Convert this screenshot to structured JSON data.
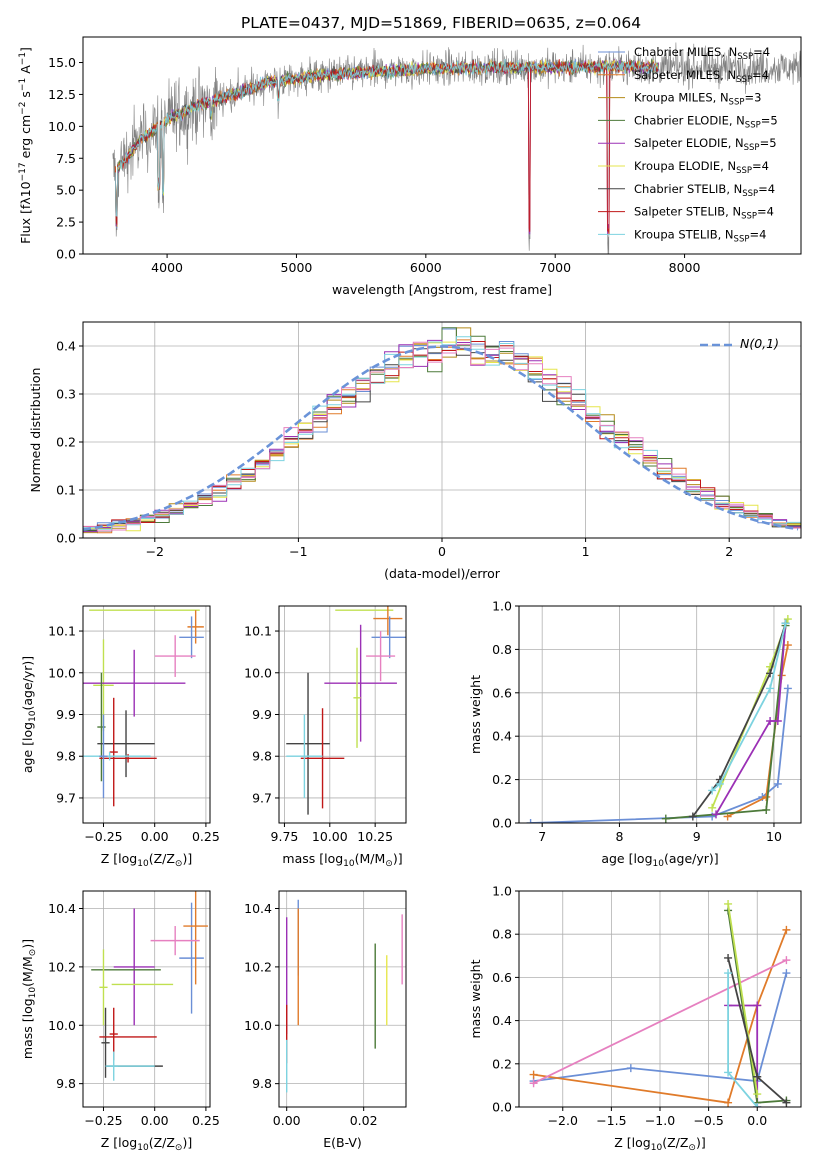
{
  "figure_title": "PLATE=0437, MJD=51869, FIBERID=0635, z=0.064",
  "colors": {
    "chabrier_miles": "#6b8fd6",
    "salpeter_miles": "#e07b2a",
    "kroupa_miles": "#b58b1a",
    "chabrier_elodie": "#4d7a3a",
    "salpeter_elodie": "#9b30b5",
    "kroupa_elodie": "#e6e64d",
    "chabrier_stelib": "#444444",
    "salpeter_stelib": "#c01818",
    "kroupa_stelib": "#7dd3e0",
    "data": "#808080",
    "normal": "#6a93d8",
    "pink": "#e680c0",
    "lime": "#c0e050"
  },
  "chart_data": [
    {
      "id": "spectrum",
      "type": "line",
      "title": "PLATE=0437, MJD=51869, FIBERID=0635, z=0.064",
      "xlabel": "wavelength [Angstrom, rest frame]",
      "ylabel_parts": [
        "Flux [f",
        "λ",
        "10",
        "−17",
        " erg cm",
        "−2",
        " s",
        "−1",
        " A",
        "−1",
        "]"
      ],
      "xlim": [
        3350,
        8900
      ],
      "ylim": [
        0,
        17
      ],
      "xticks": [
        "4000",
        "5000",
        "6000",
        "7000",
        "8000"
      ],
      "yticks": [
        "0.0",
        "2.5",
        "5.0",
        "7.5",
        "10.0",
        "12.5",
        "15.0"
      ],
      "legend_position": "right",
      "legend": [
        {
          "name": "Chabrier MILES, N",
          "sub": "SSP",
          "tail": "=4",
          "color": "#6b8fd6"
        },
        {
          "name": "Salpeter MILES, N",
          "sub": "SSP",
          "tail": "=4",
          "color": "#e07b2a"
        },
        {
          "name": "Kroupa MILES, N",
          "sub": "SSP",
          "tail": "=3",
          "color": "#b58b1a"
        },
        {
          "name": "Chabrier ELODIE, N",
          "sub": "SSP",
          "tail": "=5",
          "color": "#4d7a3a"
        },
        {
          "name": "Salpeter ELODIE, N",
          "sub": "SSP",
          "tail": "=5",
          "color": "#9b30b5"
        },
        {
          "name": "Kroupa ELODIE, N",
          "sub": "SSP",
          "tail": "=4",
          "color": "#e6e64d"
        },
        {
          "name": "Chabrier STELIB, N",
          "sub": "SSP",
          "tail": "=4",
          "color": "#444444"
        },
        {
          "name": "Salpeter STELIB, N",
          "sub": "SSP",
          "tail": "=4",
          "color": "#c01818"
        },
        {
          "name": "Kroupa STELIB, N",
          "sub": "SSP",
          "tail": "=4",
          "color": "#7dd3e0"
        }
      ],
      "continuum_anchor_points": [
        [
          3600,
          6.5
        ],
        [
          3800,
          9.0
        ],
        [
          4000,
          10.5
        ],
        [
          4200,
          11.5
        ],
        [
          4500,
          12.5
        ],
        [
          4800,
          13.5
        ],
        [
          5200,
          14.0
        ],
        [
          5600,
          14.3
        ],
        [
          6000,
          14.5
        ],
        [
          6500,
          14.6
        ],
        [
          7000,
          14.6
        ],
        [
          7500,
          14.7
        ],
        [
          7800,
          14.6
        ]
      ],
      "dips": [
        [
          3610,
          0.5
        ],
        [
          3935,
          3.5
        ],
        [
          3968,
          3.0
        ],
        [
          4340,
          9.0
        ],
        [
          4861,
          10.5
        ],
        [
          5890,
          12.5
        ],
        [
          6563,
          13.0
        ],
        [
          6800,
          0.0
        ],
        [
          7410,
          0.0
        ]
      ]
    },
    {
      "id": "residuals",
      "type": "line",
      "xlabel": "(data-model)/error",
      "ylabel": "Normed distribution",
      "xlim": [
        -2.5,
        2.5
      ],
      "ylim": [
        0,
        0.45
      ],
      "xticks": [
        "−2",
        "−1",
        "0",
        "1",
        "2"
      ],
      "yticks": [
        "0.0",
        "0.1",
        "0.2",
        "0.3",
        "0.4"
      ],
      "grid": true,
      "legend_position": "top-right",
      "legend": [
        {
          "name": "N(0,1)",
          "color": "#6a93d8"
        }
      ],
      "bin_width": 0.1,
      "distribution": "standard normal, peak 0.40 at x = 0, histograms of all 9 fits slightly shifted to positive x"
    },
    {
      "id": "age_vs_Z",
      "type": "scatter",
      "xlabel_parts": [
        "Z [log",
        "10",
        "(Z/Z",
        "⊙",
        ")]"
      ],
      "ylabel_parts": [
        "age  [log",
        "10",
        "(age/yr)]"
      ],
      "xlim": [
        -0.35,
        0.27
      ],
      "ylim": [
        9.64,
        10.16
      ],
      "xticks": [
        "−0.25",
        "0.00",
        "0.25"
      ],
      "yticks": [
        "9.7",
        "9.8",
        "9.9",
        "10.0",
        "10.1"
      ],
      "grid": true,
      "points": [
        {
          "x": -0.05,
          "y": 10.15,
          "xerr": 0.27,
          "yerr": 0.0,
          "color": "#c0e050"
        },
        {
          "x": 0.2,
          "y": 10.11,
          "xerr": 0.04,
          "yerr": 0.04,
          "color": "#e07b2a"
        },
        {
          "x": 0.18,
          "y": 10.085,
          "xerr": 0.06,
          "yerr": 0.05,
          "color": "#6b8fd6"
        },
        {
          "x": 0.1,
          "y": 10.04,
          "xerr": 0.1,
          "yerr": 0.05,
          "color": "#e680c0"
        },
        {
          "x": -0.25,
          "y": 9.97,
          "xerr": 0.05,
          "yerr": 0.11,
          "color": "#c0e050"
        },
        {
          "x": -0.1,
          "y": 9.975,
          "xerr": 0.25,
          "yerr": 0.08,
          "color": "#9b30b5"
        },
        {
          "x": -0.26,
          "y": 9.87,
          "xerr": 0.02,
          "yerr": 0.13,
          "color": "#4d7a3a"
        },
        {
          "x": -0.14,
          "y": 9.83,
          "xerr": 0.14,
          "yerr": 0.08,
          "color": "#444444"
        },
        {
          "x": -0.2,
          "y": 9.81,
          "xerr": 0.02,
          "yerr": 0.13,
          "color": "#c01818"
        },
        {
          "x": -0.13,
          "y": 9.795,
          "xerr": 0.14,
          "yerr": 0.01,
          "color": "#c01818"
        },
        {
          "x": -0.22,
          "y": 9.8,
          "xerr": 0.2,
          "yerr": 0.01,
          "color": "#7dd3e0"
        },
        {
          "x": -0.25,
          "y": 9.8,
          "xerr": 0.02,
          "yerr": 0.1,
          "color": "#6b8fd6"
        }
      ]
    },
    {
      "id": "age_vs_mass",
      "type": "scatter",
      "xlabel_parts": [
        "mass [log",
        "10",
        "(M/M",
        "⊙",
        ")]"
      ],
      "xlim": [
        9.72,
        10.42
      ],
      "ylim": [
        9.64,
        10.16
      ],
      "xticks": [
        "9.75",
        "10.00",
        "10.25"
      ],
      "yticks": [
        "9.7",
        "9.8",
        "9.9",
        "10.0",
        "10.1"
      ],
      "grid": true,
      "points": [
        {
          "x": 10.19,
          "y": 10.15,
          "xerr": 0.16,
          "yerr": 0.0,
          "color": "#c0e050"
        },
        {
          "x": 10.32,
          "y": 10.13,
          "xerr": 0.08,
          "yerr": 0.04,
          "color": "#e07b2a"
        },
        {
          "x": 10.33,
          "y": 10.085,
          "xerr": 0.1,
          "yerr": 0.05,
          "color": "#6b8fd6"
        },
        {
          "x": 10.28,
          "y": 10.04,
          "xerr": 0.08,
          "yerr": 0.06,
          "color": "#e680c0"
        },
        {
          "x": 10.17,
          "y": 9.975,
          "xerr": 0.2,
          "yerr": 0.14,
          "color": "#9b30b5"
        },
        {
          "x": 10.15,
          "y": 9.94,
          "xerr": 0.02,
          "yerr": 0.12,
          "color": "#c0e050"
        },
        {
          "x": 9.88,
          "y": 9.83,
          "xerr": 0.12,
          "yerr": 0.17,
          "color": "#444444"
        },
        {
          "x": 9.96,
          "y": 9.795,
          "xerr": 0.12,
          "yerr": 0.12,
          "color": "#c01818"
        },
        {
          "x": 9.86,
          "y": 9.8,
          "xerr": 0.1,
          "yerr": 0.1,
          "color": "#7dd3e0"
        }
      ]
    },
    {
      "id": "mass_weight_vs_age",
      "type": "line",
      "xlabel_parts": [
        "age  [log",
        "10",
        "(age/yr)]"
      ],
      "ylabel": "mass weight",
      "xlim": [
        6.7,
        10.35
      ],
      "ylim": [
        0,
        1.0
      ],
      "xticks": [
        "7",
        "8",
        "9",
        "10"
      ],
      "yticks": [
        "0.0",
        "0.2",
        "0.4",
        "0.6",
        "0.8",
        "1.0"
      ],
      "grid": true,
      "series": [
        {
          "color": "#6b8fd6",
          "points": [
            [
              6.85,
              0.0
            ],
            [
              9.2,
              0.03
            ],
            [
              9.85,
              0.12
            ],
            [
              10.05,
              0.18
            ],
            [
              10.18,
              0.62
            ]
          ]
        },
        {
          "color": "#e07b2a",
          "points": [
            [
              9.4,
              0.03
            ],
            [
              9.9,
              0.12
            ],
            [
              10.1,
              0.68
            ],
            [
              10.18,
              0.82
            ]
          ]
        },
        {
          "color": "#4d7a3a",
          "points": [
            [
              8.6,
              0.02
            ],
            [
              9.9,
              0.06
            ],
            [
              10.15,
              0.91
            ]
          ]
        },
        {
          "color": "#9b30b5",
          "points": [
            [
              9.25,
              0.04
            ],
            [
              9.95,
              0.47
            ],
            [
              10.05,
              0.47
            ],
            [
              10.15,
              0.92
            ]
          ]
        },
        {
          "color": "#c0e050",
          "points": [
            [
              9.2,
              0.07
            ],
            [
              9.95,
              0.72
            ],
            [
              10.18,
              0.94
            ]
          ]
        },
        {
          "color": "#444444",
          "points": [
            [
              8.95,
              0.03
            ],
            [
              9.3,
              0.2
            ],
            [
              9.95,
              0.69
            ],
            [
              10.15,
              0.92
            ]
          ]
        },
        {
          "color": "#7dd3e0",
          "points": [
            [
              9.2,
              0.15
            ],
            [
              9.3,
              0.18
            ],
            [
              9.95,
              0.62
            ],
            [
              10.15,
              0.92
            ]
          ]
        }
      ]
    },
    {
      "id": "mass_vs_Z",
      "type": "scatter",
      "xlabel_parts": [
        "Z [log",
        "10",
        "(Z/Z",
        "⊙",
        ")]"
      ],
      "ylabel_parts": [
        "mass [log",
        "10",
        "(M/M",
        "⊙",
        ")]"
      ],
      "xlim": [
        -0.35,
        0.27
      ],
      "ylim": [
        9.72,
        10.46
      ],
      "xticks": [
        "−0.25",
        "0.00",
        "0.25"
      ],
      "yticks": [
        "9.8",
        "10.0",
        "10.2",
        "10.4"
      ],
      "grid": true,
      "points": [
        {
          "x": 0.18,
          "y": 10.23,
          "xerr": 0.06,
          "yerr": 0.19,
          "color": "#6b8fd6"
        },
        {
          "x": 0.2,
          "y": 10.34,
          "xerr": 0.06,
          "yerr": 0.2,
          "color": "#e07b2a"
        },
        {
          "x": 0.1,
          "y": 10.29,
          "xerr": 0.12,
          "yerr": 0.05,
          "color": "#e680c0"
        },
        {
          "x": -0.1,
          "y": 10.2,
          "xerr": 0.1,
          "yerr": 0.2,
          "color": "#9b30b5"
        },
        {
          "x": -0.06,
          "y": 10.14,
          "xerr": 0.15,
          "yerr": 0.0,
          "color": "#c0e050"
        },
        {
          "x": -0.14,
          "y": 10.19,
          "xerr": 0.17,
          "yerr": 0.0,
          "color": "#4d7a3a"
        },
        {
          "x": -0.25,
          "y": 10.13,
          "xerr": 0.02,
          "yerr": 0.13,
          "color": "#c0e050"
        },
        {
          "x": -0.24,
          "y": 9.94,
          "xerr": 0.02,
          "yerr": 0.12,
          "color": "#444444"
        },
        {
          "x": -0.2,
          "y": 9.97,
          "xerr": 0.02,
          "yerr": 0.09,
          "color": "#c01818"
        },
        {
          "x": -0.13,
          "y": 9.96,
          "xerr": 0.14,
          "yerr": 0.0,
          "color": "#c01818"
        },
        {
          "x": -0.1,
          "y": 9.86,
          "xerr": 0.14,
          "yerr": 0.0,
          "color": "#444444"
        },
        {
          "x": -0.2,
          "y": 9.86,
          "xerr": 0.02,
          "yerr": 0.05,
          "color": "#7dd3e0"
        },
        {
          "x": -0.12,
          "y": 9.86,
          "xerr": 0.12,
          "yerr": 0.0,
          "color": "#7dd3e0"
        }
      ]
    },
    {
      "id": "mass_vs_ebv",
      "type": "scatter",
      "xlabel": "E(B-V)",
      "xlim": [
        -0.002,
        0.031
      ],
      "ylim": [
        9.72,
        10.46
      ],
      "xticks": [
        "0.00",
        "0.02"
      ],
      "yticks": [
        "9.8",
        "10.0",
        "10.2",
        "10.4"
      ],
      "grid": true,
      "points": [
        {
          "x": 0.0,
          "y": 10.17,
          "xerr": 0.0,
          "yerr": 0.2,
          "color": "#9b30b5"
        },
        {
          "x": 0.0,
          "y": 9.97,
          "xerr": 0.0,
          "yerr": 0.1,
          "color": "#c01818"
        },
        {
          "x": 0.0,
          "y": 9.86,
          "xerr": 0.0,
          "yerr": 0.09,
          "color": "#7dd3e0"
        },
        {
          "x": 0.003,
          "y": 10.3,
          "xerr": 0.0,
          "yerr": 0.13,
          "color": "#6b8fd6"
        },
        {
          "x": 0.003,
          "y": 10.2,
          "xerr": 0.0,
          "yerr": 0.2,
          "color": "#e07b2a"
        },
        {
          "x": 0.023,
          "y": 10.1,
          "xerr": 0.0,
          "yerr": 0.18,
          "color": "#4d7a3a"
        },
        {
          "x": 0.026,
          "y": 10.12,
          "xerr": 0.0,
          "yerr": 0.12,
          "color": "#e6e64d"
        },
        {
          "x": 0.03,
          "y": 10.26,
          "xerr": 0.0,
          "yerr": 0.12,
          "color": "#e680c0"
        }
      ]
    },
    {
      "id": "mass_weight_vs_Z",
      "type": "line",
      "xlabel_parts": [
        "Z [log",
        "10",
        "(Z/Z",
        "⊙",
        ")]"
      ],
      "ylabel": "mass weight",
      "xlim": [
        -2.45,
        0.45
      ],
      "ylim": [
        0,
        1.0
      ],
      "xticks": [
        "−2.0",
        "−1.5",
        "−1.0",
        "−0.5",
        "0.0"
      ],
      "yticks": [
        "0.0",
        "0.2",
        "0.4",
        "0.6",
        "0.8",
        "1.0"
      ],
      "grid": true,
      "series": [
        {
          "color": "#6b8fd6",
          "points": [
            [
              -2.3,
              0.12
            ],
            [
              -1.3,
              0.18
            ],
            [
              0.0,
              0.12
            ],
            [
              0.3,
              0.62
            ]
          ]
        },
        {
          "color": "#e07b2a",
          "points": [
            [
              -2.3,
              0.15
            ],
            [
              -0.3,
              0.02
            ],
            [
              0.0,
              0.47
            ],
            [
              0.3,
              0.82
            ]
          ]
        },
        {
          "color": "#e680c0",
          "points": [
            [
              -2.3,
              0.11
            ],
            [
              0.3,
              0.68
            ]
          ]
        },
        {
          "color": "#9b30b5",
          "points": [
            [
              -0.3,
              0.47
            ],
            [
              0.0,
              0.47
            ],
            [
              0.0,
              0.0
            ]
          ]
        },
        {
          "color": "#4d7a3a",
          "points": [
            [
              -0.3,
              0.91
            ],
            [
              0.0,
              0.02
            ],
            [
              0.3,
              0.03
            ]
          ]
        },
        {
          "color": "#c0e050",
          "points": [
            [
              -0.3,
              0.94
            ],
            [
              0.0,
              0.06
            ]
          ]
        },
        {
          "color": "#444444",
          "points": [
            [
              -0.3,
              0.69
            ],
            [
              0.0,
              0.14
            ],
            [
              0.3,
              0.02
            ]
          ]
        },
        {
          "color": "#7dd3e0",
          "points": [
            [
              -0.3,
              0.62
            ],
            [
              -0.3,
              0.16
            ],
            [
              0.0,
              0.0
            ]
          ]
        }
      ]
    }
  ]
}
